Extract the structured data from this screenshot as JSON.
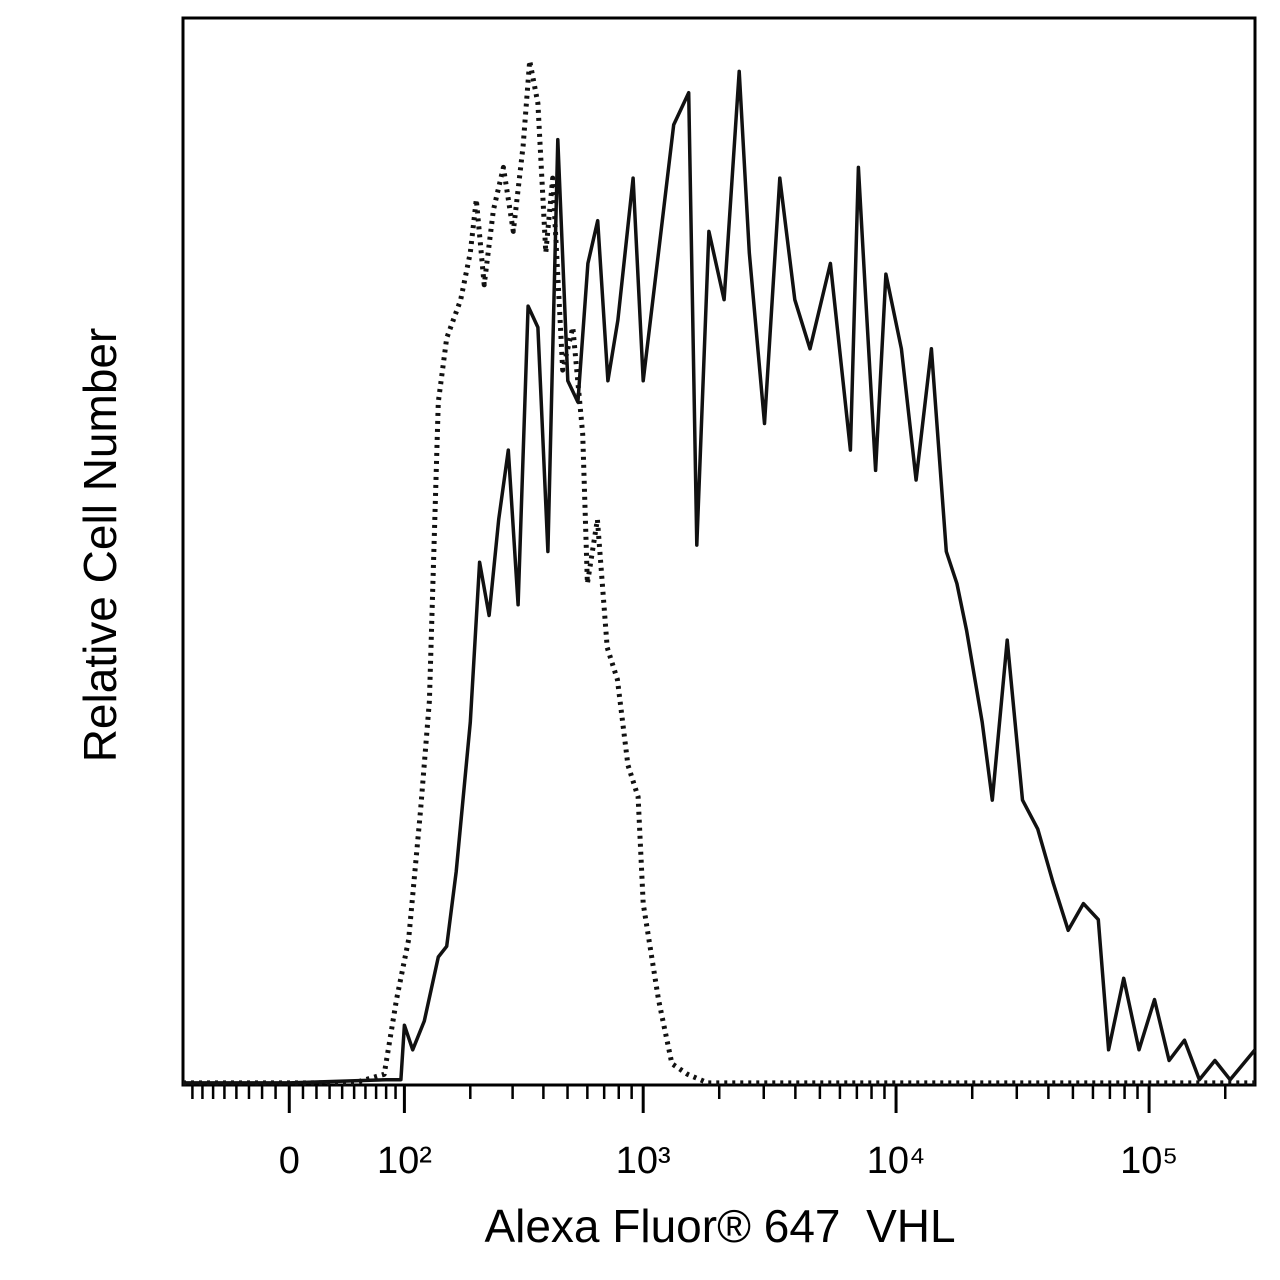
{
  "chart_data": {
    "type": "line",
    "xlabel": "Alexa Fluor® 647  VHL",
    "ylabel": "Relative Cell Number",
    "xscale": "biexponential",
    "xlim": [
      -90,
      262144
    ],
    "ylim": [
      0,
      100
    ],
    "xticks": [
      0,
      {
        "value": 100,
        "label": "10²"
      },
      {
        "value": 1000,
        "label": "10³"
      },
      {
        "value": 10000,
        "label": "10⁴"
      },
      {
        "value": 100000,
        "label": "10⁵"
      }
    ],
    "xminorticks": [
      -80,
      -70,
      -60,
      -50,
      -40,
      -30,
      -20,
      -10,
      10,
      20,
      30,
      40,
      50,
      60,
      70,
      80,
      90,
      200,
      300,
      400,
      500,
      600,
      700,
      800,
      900,
      2000,
      3000,
      4000,
      5000,
      6000,
      7000,
      8000,
      9000,
      20000,
      30000,
      40000,
      50000,
      60000,
      70000,
      80000,
      90000,
      200000
    ],
    "series": [
      {
        "color": "#111111",
        "style": "solid",
        "x": [
          -90,
          0,
          80,
          96,
          100,
          110,
          125,
          145,
          158,
          174,
          200,
          219,
          240,
          263,
          288,
          316,
          347,
          380,
          417,
          457,
          501,
          550,
          603,
          660,
          724,
          794,
          912,
          1000,
          1150,
          1321,
          1514,
          1630,
          1820,
          2090,
          2400,
          2630,
          3020,
          3470,
          3980,
          4570,
          5500,
          6600,
          7100,
          7590,
          8300,
          9120,
          10500,
          12000,
          13800,
          15800,
          17400,
          19000,
          21900,
          24000,
          27500,
          31600,
          36300,
          41700,
          47900,
          55000,
          63000,
          69200,
          79400,
          91200,
          105000,
          120000,
          138000,
          158000,
          182000,
          209000,
          262144
        ],
        "values": [
          0.2,
          0.2,
          0.5,
          0.5,
          5.6,
          3.3,
          6,
          12,
          13,
          20,
          34,
          49,
          44,
          53,
          59.5,
          45,
          73,
          71,
          50,
          88.6,
          66,
          64,
          77,
          81,
          66,
          71.7,
          85,
          66,
          78,
          90,
          93,
          50.6,
          80,
          73.6,
          95,
          78,
          62,
          85,
          73.6,
          69,
          77,
          59.5,
          86,
          73.6,
          57.6,
          76,
          69,
          56.7,
          69,
          50,
          47,
          42.6,
          34,
          26.7,
          41.7,
          26.7,
          24,
          19,
          14.5,
          17,
          15.5,
          3.3,
          10,
          3.3,
          8,
          2.3,
          4.2,
          0.5,
          2.3,
          0.5,
          3.3
        ]
      },
      {
        "color": "#111111",
        "style": "dotted",
        "x": [
          -90,
          0,
          50,
          78,
          91,
          105,
          120,
          132,
          145,
          158,
          182,
          200,
          212,
          229,
          250,
          275,
          302,
          331,
          352,
          380,
          409,
          436,
          478,
          525,
          575,
          600,
          658,
          720,
          790,
          870,
          955,
          1000,
          1150,
          1300,
          1500,
          1800,
          5000,
          50000,
          262144
        ],
        "values": [
          0.2,
          0.2,
          0.2,
          1,
          8,
          13.6,
          25.8,
          36,
          64,
          70,
          73.6,
          78,
          83,
          75,
          82,
          86,
          80,
          88,
          96,
          92,
          78,
          85,
          67,
          71,
          61,
          47,
          53,
          41,
          38,
          30,
          27,
          17,
          8,
          2,
          1,
          0.2,
          0.2,
          0.2,
          0.2
        ]
      }
    ]
  }
}
